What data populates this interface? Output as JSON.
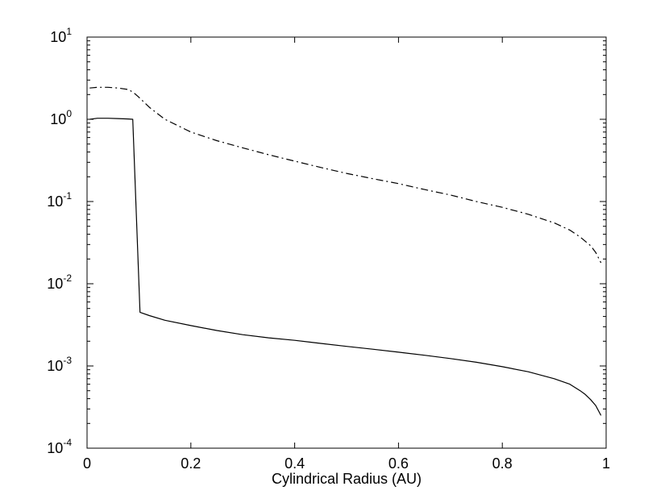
{
  "chart_data": {
    "type": "line",
    "title": "",
    "xlabel": "Cylindrical Radius (AU)",
    "ylabel": "",
    "xlim": [
      0,
      1
    ],
    "ylim": [
      0.0001,
      10
    ],
    "yscale": "log",
    "grid": false,
    "legend": "none",
    "x_ticks": [
      {
        "value": 0,
        "label": "0"
      },
      {
        "value": 0.2,
        "label": "0.2"
      },
      {
        "value": 0.4,
        "label": "0.4"
      },
      {
        "value": 0.6,
        "label": "0.6"
      },
      {
        "value": 0.8,
        "label": "0.8"
      },
      {
        "value": 1,
        "label": "1"
      }
    ],
    "y_ticks": [
      {
        "value": 0.0001,
        "base": "10",
        "exp": "-4"
      },
      {
        "value": 0.001,
        "base": "10",
        "exp": "-3"
      },
      {
        "value": 0.01,
        "base": "10",
        "exp": "-2"
      },
      {
        "value": 0.1,
        "base": "10",
        "exp": "-1"
      },
      {
        "value": 1,
        "base": "10",
        "exp": "0"
      },
      {
        "value": 10,
        "base": "10",
        "exp": "1"
      }
    ],
    "series": [
      {
        "style": "dash-dot",
        "color": "#000000",
        "x": [
          0.005,
          0.02,
          0.04,
          0.06,
          0.08,
          0.09,
          0.1,
          0.12,
          0.15,
          0.2,
          0.25,
          0.3,
          0.35,
          0.4,
          0.45,
          0.5,
          0.55,
          0.6,
          0.65,
          0.7,
          0.75,
          0.8,
          0.85,
          0.9,
          0.93,
          0.95,
          0.97,
          0.98,
          0.99
        ],
        "y": [
          2.4,
          2.45,
          2.45,
          2.4,
          2.3,
          2.1,
          1.85,
          1.4,
          1.0,
          0.7,
          0.55,
          0.45,
          0.37,
          0.31,
          0.26,
          0.22,
          0.19,
          0.165,
          0.14,
          0.12,
          0.1,
          0.085,
          0.07,
          0.055,
          0.045,
          0.037,
          0.029,
          0.024,
          0.018
        ]
      },
      {
        "style": "solid",
        "color": "#000000",
        "x": [
          0.005,
          0.02,
          0.04,
          0.06,
          0.08,
          0.088,
          0.102,
          0.12,
          0.15,
          0.2,
          0.25,
          0.3,
          0.35,
          0.4,
          0.45,
          0.5,
          0.55,
          0.6,
          0.65,
          0.7,
          0.75,
          0.8,
          0.85,
          0.9,
          0.93,
          0.95,
          0.96,
          0.97,
          0.98,
          0.99
        ],
        "y": [
          1.0,
          1.03,
          1.03,
          1.02,
          1.01,
          1.0,
          0.0045,
          0.0041,
          0.0036,
          0.0031,
          0.0027,
          0.0024,
          0.0022,
          0.00205,
          0.00188,
          0.00173,
          0.0016,
          0.00147,
          0.00135,
          0.00123,
          0.00111,
          0.00098,
          0.00085,
          0.0007,
          0.0006,
          0.0005,
          0.00045,
          0.00039,
          0.00033,
          0.00025
        ]
      }
    ]
  }
}
